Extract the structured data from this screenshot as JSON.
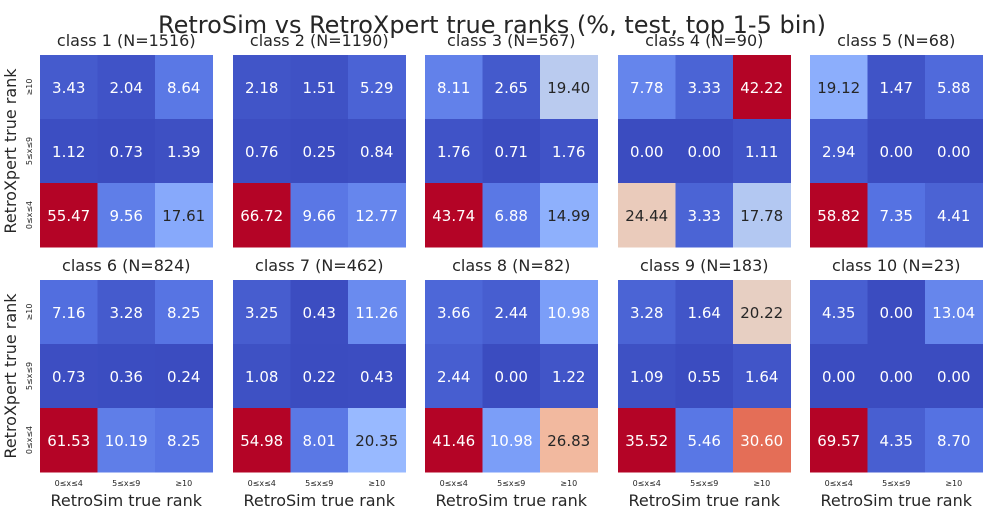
{
  "chart_data": {
    "type": "heatmap",
    "title": "RetroSim vs RetroXpert true ranks (%, test, top 1-5 bin)",
    "xlabel": "RetroSim true rank",
    "ylabel": "RetroXpert true rank",
    "x_categories": [
      "0≤x≤4",
      "5≤x≤9",
      "≥10"
    ],
    "y_categories": [
      "≥10",
      "5≤x≤9",
      "0≤x≤4"
    ],
    "colormap": "coolwarm",
    "panels": [
      {
        "title": "class 1 (N=1516)",
        "values": [
          [
            3.43,
            2.04,
            8.64
          ],
          [
            1.12,
            0.73,
            1.39
          ],
          [
            55.47,
            9.56,
            17.61
          ]
        ]
      },
      {
        "title": "class 2 (N=1190)",
        "values": [
          [
            2.18,
            1.51,
            5.29
          ],
          [
            0.76,
            0.25,
            0.84
          ],
          [
            66.72,
            9.66,
            12.77
          ]
        ]
      },
      {
        "title": "class 3 (N=567)",
        "values": [
          [
            8.11,
            2.65,
            19.4
          ],
          [
            1.76,
            0.71,
            1.76
          ],
          [
            43.74,
            6.88,
            14.99
          ]
        ]
      },
      {
        "title": "class 4 (N=90)",
        "values": [
          [
            7.78,
            3.33,
            42.22
          ],
          [
            0.0,
            0.0,
            1.11
          ],
          [
            24.44,
            3.33,
            17.78
          ]
        ]
      },
      {
        "title": "class 5 (N=68)",
        "values": [
          [
            19.12,
            1.47,
            5.88
          ],
          [
            2.94,
            0.0,
            0.0
          ],
          [
            58.82,
            7.35,
            4.41
          ]
        ]
      },
      {
        "title": "class 6 (N=824)",
        "values": [
          [
            7.16,
            3.28,
            8.25
          ],
          [
            0.73,
            0.36,
            0.24
          ],
          [
            61.53,
            10.19,
            8.25
          ]
        ]
      },
      {
        "title": "class 7 (N=462)",
        "values": [
          [
            3.25,
            0.43,
            11.26
          ],
          [
            1.08,
            0.22,
            0.43
          ],
          [
            54.98,
            8.01,
            20.35
          ]
        ]
      },
      {
        "title": "class 8 (N=82)",
        "values": [
          [
            3.66,
            2.44,
            10.98
          ],
          [
            2.44,
            0.0,
            1.22
          ],
          [
            41.46,
            10.98,
            26.83
          ]
        ]
      },
      {
        "title": "class 9 (N=183)",
        "values": [
          [
            3.28,
            1.64,
            20.22
          ],
          [
            1.09,
            0.55,
            1.64
          ],
          [
            35.52,
            5.46,
            30.6
          ]
        ]
      },
      {
        "title": "class 10 (N=23)",
        "values": [
          [
            4.35,
            0.0,
            13.04
          ],
          [
            0.0,
            0.0,
            0.0
          ],
          [
            69.57,
            4.35,
            8.7
          ]
        ]
      }
    ]
  }
}
